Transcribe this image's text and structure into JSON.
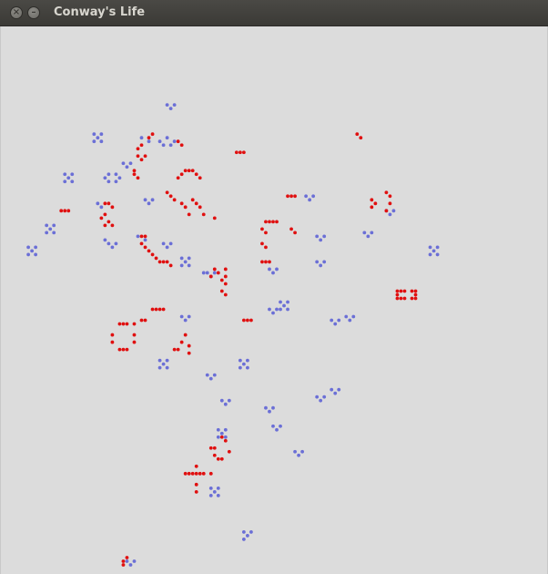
{
  "window": {
    "title": "Conway's Life",
    "close_glyph": "×",
    "minimize_glyph": "–"
  },
  "colors": {
    "live_cell": "#6b6fd6",
    "new_cell": "#e01010",
    "background": "#dcdcdc"
  },
  "grid": {
    "columns": 150,
    "rows": 150,
    "blue_cells": [
      [
        45,
        21
      ],
      [
        47,
        21
      ],
      [
        46,
        22
      ],
      [
        25,
        29
      ],
      [
        27,
        29
      ],
      [
        26,
        30
      ],
      [
        25,
        31
      ],
      [
        27,
        31
      ],
      [
        45,
        30
      ],
      [
        43,
        31
      ],
      [
        47,
        31
      ],
      [
        44,
        32
      ],
      [
        46,
        32
      ],
      [
        33,
        37
      ],
      [
        35,
        37
      ],
      [
        34,
        38
      ],
      [
        17,
        40
      ],
      [
        19,
        40
      ],
      [
        18,
        41
      ],
      [
        17,
        42
      ],
      [
        19,
        42
      ],
      [
        29,
        40
      ],
      [
        31,
        40
      ],
      [
        28,
        41
      ],
      [
        32,
        41
      ],
      [
        29,
        42
      ],
      [
        31,
        42
      ],
      [
        83,
        46
      ],
      [
        85,
        46
      ],
      [
        84,
        47
      ],
      [
        12,
        54
      ],
      [
        14,
        54
      ],
      [
        13,
        55
      ],
      [
        12,
        56
      ],
      [
        14,
        56
      ],
      [
        29,
        59
      ],
      [
        31,
        59
      ],
      [
        30,
        60
      ],
      [
        7,
        60
      ],
      [
        9,
        60
      ],
      [
        8,
        61
      ],
      [
        7,
        62
      ],
      [
        9,
        62
      ],
      [
        44,
        59
      ],
      [
        46,
        59
      ],
      [
        45,
        60
      ],
      [
        49,
        63
      ],
      [
        51,
        63
      ],
      [
        50,
        64
      ],
      [
        49,
        65
      ],
      [
        51,
        65
      ],
      [
        56,
        67
      ],
      [
        58,
        67
      ],
      [
        57,
        68
      ],
      [
        76,
        75
      ],
      [
        78,
        75
      ],
      [
        77,
        76
      ],
      [
        76,
        77
      ],
      [
        78,
        77
      ],
      [
        73,
        66
      ],
      [
        75,
        66
      ],
      [
        74,
        67
      ],
      [
        86,
        57
      ],
      [
        88,
        57
      ],
      [
        87,
        58
      ],
      [
        86,
        64
      ],
      [
        88,
        64
      ],
      [
        87,
        65
      ],
      [
        99,
        56
      ],
      [
        101,
        56
      ],
      [
        100,
        57
      ],
      [
        117,
        60
      ],
      [
        119,
        60
      ],
      [
        118,
        61
      ],
      [
        117,
        62
      ],
      [
        119,
        62
      ],
      [
        105,
        50
      ],
      [
        107,
        50
      ],
      [
        106,
        51
      ],
      [
        73,
        77
      ],
      [
        75,
        77
      ],
      [
        74,
        78
      ],
      [
        49,
        79
      ],
      [
        51,
        79
      ],
      [
        50,
        80
      ],
      [
        90,
        80
      ],
      [
        92,
        80
      ],
      [
        91,
        81
      ],
      [
        94,
        79
      ],
      [
        96,
        79
      ],
      [
        95,
        80
      ],
      [
        43,
        91
      ],
      [
        45,
        91
      ],
      [
        44,
        92
      ],
      [
        43,
        93
      ],
      [
        45,
        93
      ],
      [
        65,
        91
      ],
      [
        67,
        91
      ],
      [
        66,
        92
      ],
      [
        65,
        93
      ],
      [
        67,
        93
      ],
      [
        56,
        95
      ],
      [
        58,
        95
      ],
      [
        57,
        96
      ],
      [
        60,
        102
      ],
      [
        62,
        102
      ],
      [
        61,
        103
      ],
      [
        72,
        104
      ],
      [
        74,
        104
      ],
      [
        73,
        105
      ],
      [
        86,
        101
      ],
      [
        88,
        101
      ],
      [
        87,
        102
      ],
      [
        90,
        99
      ],
      [
        92,
        99
      ],
      [
        91,
        100
      ],
      [
        74,
        109
      ],
      [
        76,
        109
      ],
      [
        75,
        110
      ],
      [
        80,
        116
      ],
      [
        82,
        116
      ],
      [
        81,
        117
      ],
      [
        57,
        126
      ],
      [
        59,
        126
      ],
      [
        58,
        127
      ],
      [
        57,
        128
      ],
      [
        59,
        128
      ],
      [
        66,
        138
      ],
      [
        68,
        138
      ],
      [
        67,
        139
      ],
      [
        66,
        140
      ],
      [
        34,
        146
      ],
      [
        36,
        146
      ],
      [
        35,
        147
      ],
      [
        38,
        30
      ],
      [
        40,
        31
      ],
      [
        39,
        47
      ],
      [
        41,
        47
      ],
      [
        40,
        48
      ],
      [
        26,
        48
      ],
      [
        27,
        49
      ],
      [
        55,
        67
      ],
      [
        37,
        57
      ],
      [
        39,
        58
      ],
      [
        59,
        110
      ],
      [
        61,
        110
      ],
      [
        60,
        111
      ],
      [
        59,
        112
      ],
      [
        61,
        112
      ],
      [
        28,
        58
      ]
    ],
    "red_cells": [
      [
        41,
        29
      ],
      [
        40,
        30
      ],
      [
        38,
        32
      ],
      [
        37,
        33
      ],
      [
        37,
        35
      ],
      [
        38,
        36
      ],
      [
        39,
        35
      ],
      [
        36,
        39
      ],
      [
        36,
        40
      ],
      [
        37,
        41
      ],
      [
        48,
        31
      ],
      [
        49,
        32
      ],
      [
        64,
        34
      ],
      [
        65,
        34
      ],
      [
        66,
        34
      ],
      [
        97,
        29
      ],
      [
        98,
        30
      ],
      [
        50,
        39
      ],
      [
        51,
        39
      ],
      [
        52,
        39
      ],
      [
        49,
        40
      ],
      [
        53,
        40
      ],
      [
        48,
        41
      ],
      [
        54,
        41
      ],
      [
        45,
        45
      ],
      [
        46,
        46
      ],
      [
        47,
        47
      ],
      [
        49,
        48
      ],
      [
        50,
        49
      ],
      [
        52,
        47
      ],
      [
        53,
        48
      ],
      [
        54,
        49
      ],
      [
        51,
        51
      ],
      [
        55,
        51
      ],
      [
        58,
        52
      ],
      [
        16,
        50
      ],
      [
        17,
        50
      ],
      [
        18,
        50
      ],
      [
        28,
        48
      ],
      [
        29,
        48
      ],
      [
        30,
        49
      ],
      [
        28,
        51
      ],
      [
        27,
        52
      ],
      [
        29,
        53
      ],
      [
        28,
        54
      ],
      [
        30,
        54
      ],
      [
        38,
        57
      ],
      [
        39,
        57
      ],
      [
        38,
        59
      ],
      [
        39,
        60
      ],
      [
        40,
        61
      ],
      [
        41,
        62
      ],
      [
        42,
        63
      ],
      [
        43,
        64
      ],
      [
        44,
        64
      ],
      [
        45,
        64
      ],
      [
        46,
        65
      ],
      [
        78,
        46
      ],
      [
        79,
        46
      ],
      [
        80,
        46
      ],
      [
        101,
        47
      ],
      [
        102,
        48
      ],
      [
        101,
        49
      ],
      [
        105,
        45
      ],
      [
        106,
        46
      ],
      [
        106,
        48
      ],
      [
        105,
        50
      ],
      [
        72,
        53
      ],
      [
        73,
        53
      ],
      [
        74,
        53
      ],
      [
        75,
        53
      ],
      [
        71,
        55
      ],
      [
        72,
        56
      ],
      [
        71,
        59
      ],
      [
        72,
        60
      ],
      [
        79,
        55
      ],
      [
        80,
        56
      ],
      [
        71,
        64
      ],
      [
        72,
        64
      ],
      [
        73,
        64
      ],
      [
        57,
        68
      ],
      [
        58,
        66
      ],
      [
        59,
        67
      ],
      [
        61,
        66
      ],
      [
        60,
        69
      ],
      [
        61,
        68
      ],
      [
        61,
        70
      ],
      [
        60,
        72
      ],
      [
        61,
        73
      ],
      [
        108,
        72
      ],
      [
        109,
        72
      ],
      [
        110,
        72
      ],
      [
        112,
        72
      ],
      [
        113,
        72
      ],
      [
        108,
        73
      ],
      [
        113,
        73
      ],
      [
        108,
        74
      ],
      [
        109,
        74
      ],
      [
        110,
        74
      ],
      [
        112,
        74
      ],
      [
        113,
        74
      ],
      [
        66,
        80
      ],
      [
        67,
        80
      ],
      [
        68,
        80
      ],
      [
        32,
        81
      ],
      [
        33,
        81
      ],
      [
        34,
        81
      ],
      [
        36,
        81
      ],
      [
        30,
        84
      ],
      [
        36,
        84
      ],
      [
        30,
        86
      ],
      [
        36,
        86
      ],
      [
        32,
        88
      ],
      [
        33,
        88
      ],
      [
        34,
        88
      ],
      [
        41,
        77
      ],
      [
        42,
        77
      ],
      [
        43,
        77
      ],
      [
        44,
        77
      ],
      [
        38,
        80
      ],
      [
        39,
        80
      ],
      [
        50,
        84
      ],
      [
        49,
        86
      ],
      [
        51,
        87
      ],
      [
        47,
        88
      ],
      [
        48,
        88
      ],
      [
        51,
        89
      ],
      [
        60,
        112
      ],
      [
        61,
        113
      ],
      [
        57,
        115
      ],
      [
        58,
        115
      ],
      [
        62,
        116
      ],
      [
        58,
        117
      ],
      [
        59,
        118
      ],
      [
        60,
        118
      ],
      [
        50,
        122
      ],
      [
        51,
        122
      ],
      [
        52,
        122
      ],
      [
        53,
        120
      ],
      [
        53,
        122
      ],
      [
        54,
        122
      ],
      [
        55,
        122
      ],
      [
        57,
        122
      ],
      [
        53,
        125
      ],
      [
        53,
        127
      ],
      [
        34,
        145
      ],
      [
        33,
        146
      ],
      [
        33,
        147
      ]
    ]
  }
}
